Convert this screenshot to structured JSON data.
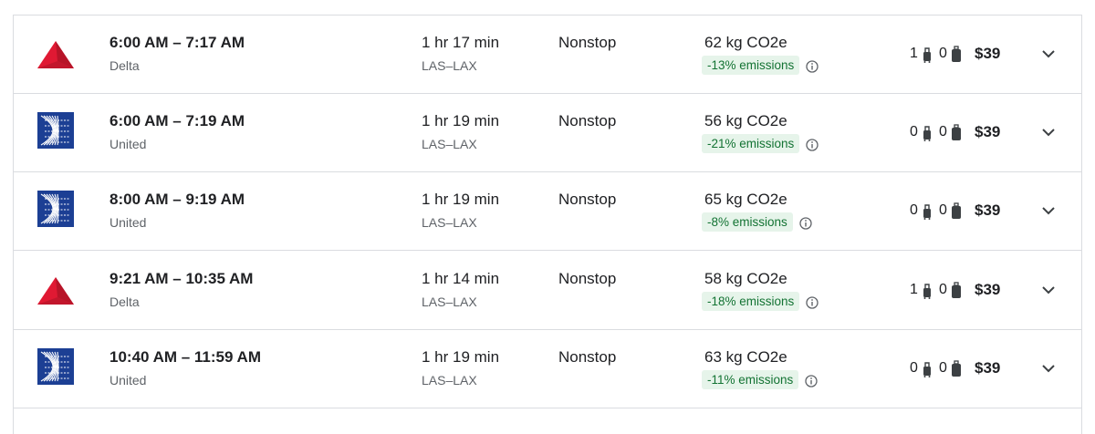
{
  "flights": [
    {
      "times": "6:00 AM – 7:17 AM",
      "airline": "Delta",
      "logo": "triangle",
      "logo_color": "#e01933",
      "duration": "1 hr 17 min",
      "route": "LAS–LAX",
      "stops": "Nonstop",
      "emissions": "62 kg CO2e",
      "emissions_change": "-13% emissions",
      "carry_on": "1",
      "checked": "0",
      "price": "$39"
    },
    {
      "times": "6:00 AM – 7:19 AM",
      "airline": "United",
      "logo": "globe",
      "logo_color": "#1c3f94",
      "duration": "1 hr 19 min",
      "route": "LAS–LAX",
      "stops": "Nonstop",
      "emissions": "56 kg CO2e",
      "emissions_change": "-21% emissions",
      "carry_on": "0",
      "checked": "0",
      "price": "$39"
    },
    {
      "times": "8:00 AM – 9:19 AM",
      "airline": "United",
      "logo": "globe",
      "logo_color": "#1c3f94",
      "duration": "1 hr 19 min",
      "route": "LAS–LAX",
      "stops": "Nonstop",
      "emissions": "65 kg CO2e",
      "emissions_change": "-8% emissions",
      "carry_on": "0",
      "checked": "0",
      "price": "$39"
    },
    {
      "times": "9:21 AM – 10:35 AM",
      "airline": "Delta",
      "logo": "triangle",
      "logo_color": "#e01933",
      "duration": "1 hr 14 min",
      "route": "LAS–LAX",
      "stops": "Nonstop",
      "emissions": "58 kg CO2e",
      "emissions_change": "-18% emissions",
      "carry_on": "1",
      "checked": "0",
      "price": "$39"
    },
    {
      "times": "10:40 AM – 11:59 AM",
      "airline": "United",
      "logo": "globe",
      "logo_color": "#1c3f94",
      "duration": "1 hr 19 min",
      "route": "LAS–LAX",
      "stops": "Nonstop",
      "emissions": "63 kg CO2e",
      "emissions_change": "-11% emissions",
      "carry_on": "0",
      "checked": "0",
      "price": "$39"
    }
  ]
}
